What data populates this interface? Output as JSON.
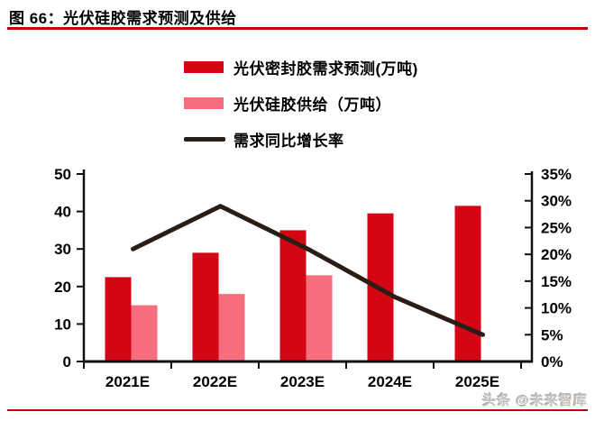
{
  "figure": {
    "title": "图 66：光伏硅胶需求预测及供给",
    "watermark": "头条 @未来智库"
  },
  "colors": {
    "demand_bar": "#d20615",
    "supply_bar": "#f66d7d",
    "growth_line": "#2b1d16",
    "rule_red": "#c00000",
    "axis": "#111111",
    "watermark_gray": "#c6c2bf"
  },
  "chart_data": {
    "type": "bar+line",
    "title": "光伏硅胶需求预测及供给",
    "categories": [
      "2021E",
      "2022E",
      "2023E",
      "2024E",
      "2025E"
    ],
    "series": [
      {
        "name": "光伏密封胶需求预测(万吨)",
        "type": "bar",
        "axis": "left",
        "values": [
          22.5,
          29,
          35,
          39.5,
          41.5
        ]
      },
      {
        "name": "光伏硅胶供给（万吨）",
        "type": "bar",
        "axis": "left",
        "values": [
          15,
          18,
          23,
          null,
          null
        ]
      },
      {
        "name": "需求同比增长率",
        "type": "line",
        "axis": "right",
        "values": [
          21,
          29,
          21,
          12,
          5
        ]
      }
    ],
    "left_axis": {
      "min": 0,
      "max": 50,
      "step": 10,
      "ticks": [
        "0",
        "10",
        "20",
        "30",
        "40",
        "50"
      ]
    },
    "right_axis": {
      "min": 0,
      "max": 35,
      "step": 5,
      "ticks": [
        "0%",
        "5%",
        "10%",
        "15%",
        "20%",
        "25%",
        "30%",
        "35%"
      ]
    },
    "legend_position": "top-center",
    "grid": false
  }
}
